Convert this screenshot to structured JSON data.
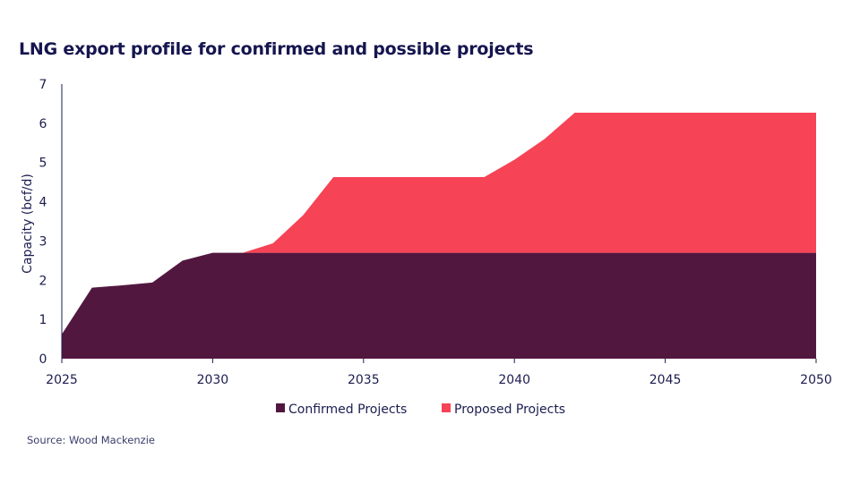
{
  "chart_data": {
    "type": "area",
    "stacked": true,
    "title": "LNG export profile for confirmed and possible projects",
    "xlabel": "",
    "ylabel": "Capacity (bcf/d)",
    "xlim": [
      2025,
      2050
    ],
    "ylim": [
      0,
      7
    ],
    "x_ticks": [
      "2025",
      "2030",
      "2035",
      "2040",
      "2045",
      "2050"
    ],
    "y_ticks": [
      "0",
      "1",
      "2",
      "3",
      "4",
      "5",
      "6",
      "7"
    ],
    "grid": false,
    "legend_position": "bottom",
    "x": [
      2025,
      2026,
      2027,
      2028,
      2029,
      2030,
      2031,
      2032,
      2033,
      2034,
      2035,
      2036,
      2037,
      2038,
      2039,
      2040,
      2041,
      2042,
      2043,
      2044,
      2045,
      2046,
      2047,
      2048,
      2049,
      2050
    ],
    "series": [
      {
        "name": "Confirmed Projects",
        "color": "#52173f",
        "values": [
          0.62,
          1.81,
          1.87,
          1.94,
          2.5,
          2.7,
          2.7,
          2.7,
          2.7,
          2.7,
          2.7,
          2.7,
          2.7,
          2.7,
          2.7,
          2.7,
          2.7,
          2.7,
          2.7,
          2.7,
          2.7,
          2.7,
          2.7,
          2.7,
          2.7,
          2.7
        ]
      },
      {
        "name": "Proposed Projects",
        "color": "#f64356",
        "values": [
          0,
          0,
          0,
          0,
          0,
          0,
          0,
          0.24,
          0.96,
          1.93,
          1.93,
          1.93,
          1.93,
          1.93,
          1.93,
          2.37,
          2.9,
          3.57,
          3.57,
          3.57,
          3.57,
          3.57,
          3.57,
          3.57,
          3.57,
          3.57
        ]
      }
    ]
  },
  "source": "Source: Wood Mackenzie"
}
